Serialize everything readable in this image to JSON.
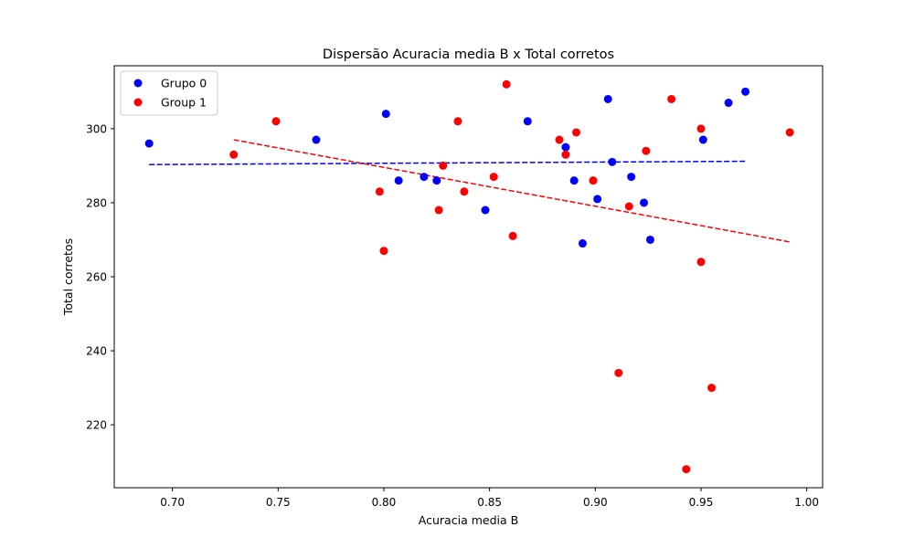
{
  "chart_data": {
    "type": "scatter",
    "title": "Dispersão Acuracia media B x Total corretos",
    "xlabel": "Acuracia media B",
    "ylabel": "Total corretos",
    "xlim": [
      0.6725,
      1.0075
    ],
    "ylim": [
      203,
      317
    ],
    "xticks": [
      0.7,
      0.75,
      0.8,
      0.85,
      0.9,
      0.95,
      1.0
    ],
    "xtick_labels": [
      "0.70",
      "0.75",
      "0.80",
      "0.85",
      "0.90",
      "0.95",
      "1.00"
    ],
    "yticks": [
      220,
      240,
      260,
      280,
      300
    ],
    "ytick_labels": [
      "220",
      "240",
      "260",
      "280",
      "300"
    ],
    "grid": false,
    "legend_position": "top-left",
    "series": [
      {
        "name": "Grupo 0",
        "color": "#0000ff",
        "points": [
          [
            0.689,
            296
          ],
          [
            0.768,
            297
          ],
          [
            0.801,
            304
          ],
          [
            0.807,
            286
          ],
          [
            0.819,
            287
          ],
          [
            0.825,
            286
          ],
          [
            0.848,
            278
          ],
          [
            0.868,
            302
          ],
          [
            0.886,
            295
          ],
          [
            0.89,
            286
          ],
          [
            0.894,
            269
          ],
          [
            0.901,
            281
          ],
          [
            0.906,
            308
          ],
          [
            0.908,
            291
          ],
          [
            0.917,
            287
          ],
          [
            0.923,
            280
          ],
          [
            0.926,
            270
          ],
          [
            0.951,
            297
          ],
          [
            0.963,
            307
          ],
          [
            0.971,
            310
          ]
        ],
        "trend": {
          "x_start": 0.689,
          "y_start": 290.3,
          "x_end": 0.971,
          "y_end": 291.2
        }
      },
      {
        "name": "Group 1",
        "color": "#ff0000",
        "points": [
          [
            0.729,
            293
          ],
          [
            0.749,
            302
          ],
          [
            0.798,
            283
          ],
          [
            0.8,
            267
          ],
          [
            0.826,
            278
          ],
          [
            0.828,
            290
          ],
          [
            0.835,
            302
          ],
          [
            0.838,
            283
          ],
          [
            0.852,
            287
          ],
          [
            0.858,
            312
          ],
          [
            0.861,
            271
          ],
          [
            0.883,
            297
          ],
          [
            0.886,
            293
          ],
          [
            0.891,
            299
          ],
          [
            0.899,
            286
          ],
          [
            0.911,
            234
          ],
          [
            0.916,
            279
          ],
          [
            0.924,
            294
          ],
          [
            0.936,
            308
          ],
          [
            0.943,
            208
          ],
          [
            0.95,
            300
          ],
          [
            0.95,
            264
          ],
          [
            0.955,
            230
          ],
          [
            0.992,
            299
          ]
        ],
        "trend": {
          "x_start": 0.729,
          "y_start": 297.0,
          "x_end": 0.992,
          "y_end": 269.4
        }
      }
    ]
  }
}
